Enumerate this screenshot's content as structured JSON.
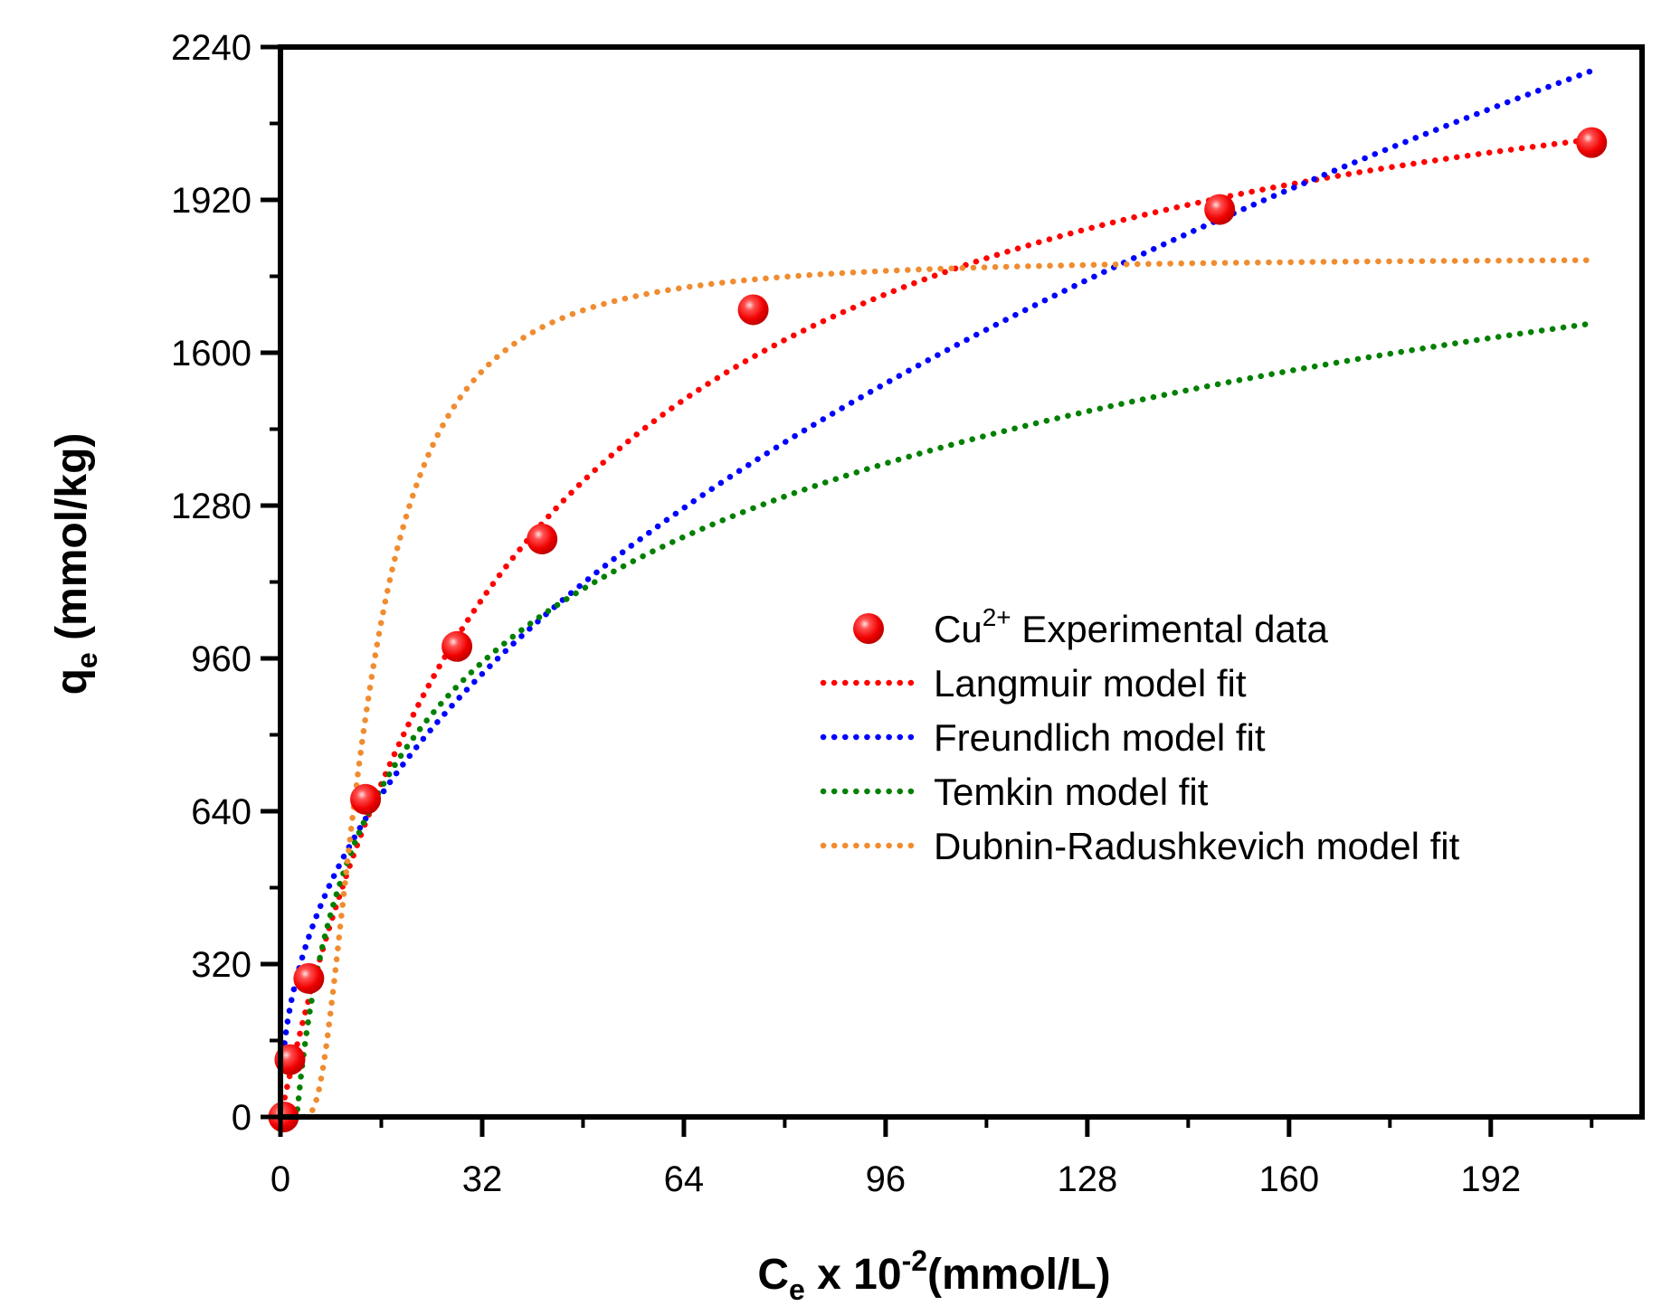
{
  "chart_data": {
    "type": "scatter",
    "title": "",
    "xlabel": {
      "base": "C",
      "sub": "e",
      "mid": " x 10",
      "sup": "-2",
      "tail": "(mmol/L)"
    },
    "ylabel": {
      "base": "q",
      "sub": "e",
      "tail": " (mmol/kg)"
    },
    "xlim": [
      0,
      216
    ],
    "ylim": [
      0,
      2240
    ],
    "xticks": [
      0,
      32,
      64,
      96,
      128,
      160,
      192
    ],
    "yticks": [
      0,
      320,
      640,
      960,
      1280,
      1600,
      1920,
      2240
    ],
    "xtick_labels": [
      "0",
      "32",
      "64",
      "96",
      "128",
      "160",
      "192"
    ],
    "ytick_labels": [
      "0",
      "320",
      "640",
      "960",
      "1280",
      "1600",
      "1920",
      "2240"
    ],
    "legend_position": "center-right",
    "series": [
      {
        "name": "Cu2+ Experimental data",
        "legend": {
          "base": "Cu",
          "sup": "2+",
          "tail": " Experimental data"
        },
        "kind": "points",
        "color": "#ff0000",
        "points": [
          [
            0.5,
            0
          ],
          [
            1.5,
            120
          ],
          [
            4.5,
            290
          ],
          [
            13.5,
            665
          ],
          [
            28,
            985
          ],
          [
            41.5,
            1210
          ],
          [
            75,
            1690
          ],
          [
            149,
            1900
          ],
          [
            208,
            2040
          ]
        ]
      },
      {
        "name": "Langmuir model fit",
        "legend": {
          "base": "Langmuir model fit"
        },
        "kind": "line",
        "color": "#ff0000",
        "curve": "langmuir",
        "params": {
          "qmax": 2440,
          "K": 0.025
        }
      },
      {
        "name": "Freundlich model fit",
        "legend": {
          "base": "Freundlich model fit"
        },
        "kind": "line",
        "color": "#0000ff",
        "curve": "freundlich",
        "params": {
          "Kf": 189,
          "n": 0.459
        }
      },
      {
        "name": "Temkin model fit",
        "legend": {
          "base": "Temkin model fit"
        },
        "kind": "line",
        "color": "#008000",
        "curve": "temkin",
        "params": {
          "B": 379,
          "A": 0.385
        }
      },
      {
        "name": "Dubnin-Radushkevich model fit",
        "legend": {
          "base": "Dubnin-Radushkevich model fit"
        },
        "kind": "line",
        "color": "#f08c30",
        "curve": "dr",
        "params": {
          "qm": 1800,
          "k": 150
        }
      }
    ]
  }
}
